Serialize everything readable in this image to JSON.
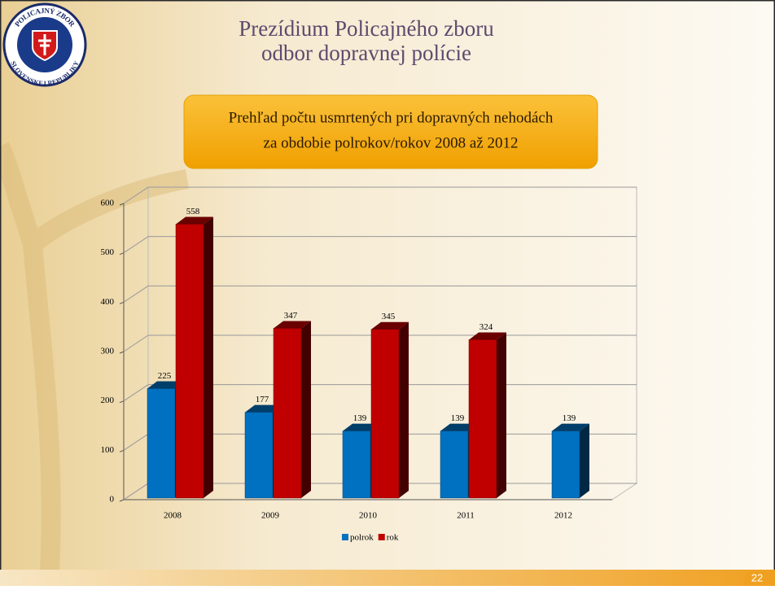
{
  "header": {
    "line1": "Prezídium Policajného zboru",
    "line2": "odbor dopravnej polície"
  },
  "logo": {
    "top": "POLICAJNÝ ZBOR",
    "bottom": "SLOVENSKEJ REPUBLIKY"
  },
  "page_number": "22",
  "chart_data": {
    "type": "bar",
    "title": [
      "Prehľad počtu usmrtených pri dopravných nehodách",
      "za obdobie polrokov/rokov 2008 až 2012"
    ],
    "categories": [
      "2008",
      "2009",
      "2010",
      "2011",
      "2012"
    ],
    "series": [
      {
        "name": "polrok",
        "color": "#0070c0",
        "values": [
          225,
          177,
          139,
          139,
          139
        ]
      },
      {
        "name": "rok",
        "color": "#c00000",
        "values": [
          558,
          347,
          345,
          324,
          null
        ]
      }
    ],
    "ylim": [
      0,
      600
    ],
    "yticks": [
      0,
      100,
      200,
      300,
      400,
      500,
      600
    ],
    "grid": true,
    "legend": "bottom"
  }
}
